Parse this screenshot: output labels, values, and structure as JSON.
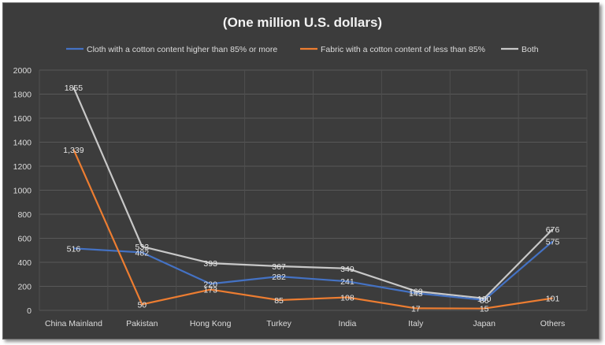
{
  "chart_data": {
    "type": "line",
    "title": "(One million U.S. dollars)",
    "categories": [
      "China Mainland",
      "Pakistan",
      "Hong Kong",
      "Turkey",
      "India",
      "Italy",
      "Japan",
      "Others"
    ],
    "ylim": [
      0,
      2000
    ],
    "yticks": [
      0,
      200,
      400,
      600,
      800,
      1000,
      1200,
      1400,
      1600,
      1800,
      2000
    ],
    "grid": true,
    "legend_position": "top",
    "series": [
      {
        "name": "Cloth with a cotton content higher than 85% or more",
        "color": "#4472c4",
        "values": [
          516,
          482,
          220,
          282,
          241,
          143,
          86,
          575
        ],
        "labels": [
          "516",
          "482",
          "220",
          "282",
          "241",
          "143",
          "86",
          "575"
        ]
      },
      {
        "name": "Fabric with a cotton content of less than 85%",
        "color": "#ed7d31",
        "values": [
          1339,
          50,
          173,
          85,
          108,
          17,
          15,
          101
        ],
        "labels": [
          "1,339",
          "50",
          "173",
          "85",
          "108",
          "17",
          "15",
          "101"
        ]
      },
      {
        "name": "Both",
        "color": "#c8c8c8",
        "values": [
          1855,
          532,
          393,
          367,
          349,
          160,
          100,
          676
        ],
        "labels": [
          "1855",
          "532",
          "393",
          "367",
          "349",
          "160",
          "100",
          "676"
        ]
      }
    ]
  }
}
